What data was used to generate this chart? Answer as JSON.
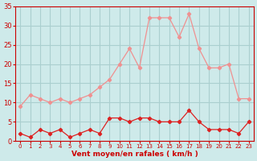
{
  "x": [
    0,
    1,
    2,
    3,
    4,
    5,
    6,
    7,
    8,
    9,
    10,
    11,
    12,
    13,
    14,
    15,
    16,
    17,
    18,
    19,
    20,
    21,
    22,
    23
  ],
  "wind_avg": [
    2,
    1,
    3,
    2,
    3,
    1,
    2,
    3,
    2,
    6,
    6,
    5,
    6,
    6,
    5,
    5,
    5,
    8,
    5,
    3,
    3,
    3,
    2,
    5
  ],
  "wind_gust": [
    9,
    12,
    11,
    10,
    11,
    10,
    11,
    12,
    14,
    16,
    20,
    24,
    19,
    32,
    32,
    32,
    27,
    33,
    24,
    19,
    19,
    20,
    11,
    11
  ],
  "bg_color": "#ceeaea",
  "grid_color": "#aacfcf",
  "line_avg_color": "#dd2222",
  "line_gust_color": "#f09090",
  "xlabel": "Vent moyen/en rafales ( km/h )",
  "xlabel_color": "#cc0000",
  "tick_color": "#cc0000",
  "ylim": [
    0,
    35
  ],
  "yticks": [
    0,
    5,
    10,
    15,
    20,
    25,
    30,
    35
  ],
  "xlim": [
    -0.5,
    23.5
  ],
  "xticks": [
    0,
    1,
    2,
    3,
    4,
    5,
    6,
    7,
    8,
    9,
    10,
    11,
    12,
    13,
    14,
    15,
    16,
    17,
    18,
    19,
    20,
    21,
    22,
    23
  ]
}
